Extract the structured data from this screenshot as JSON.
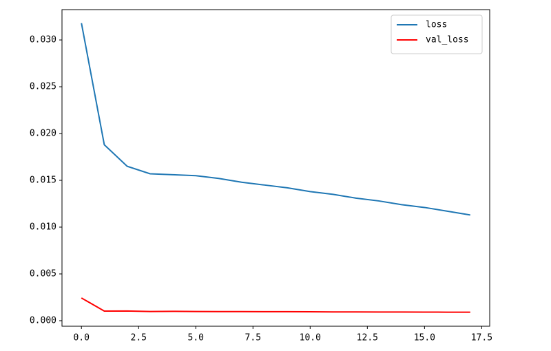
{
  "chart_data": {
    "type": "line",
    "x": [
      0,
      1,
      2,
      3,
      4,
      5,
      6,
      7,
      8,
      9,
      10,
      11,
      12,
      13,
      14,
      15,
      16,
      17
    ],
    "series": [
      {
        "name": "loss",
        "color": "#1f77b4",
        "values": [
          0.0318,
          0.0188,
          0.0165,
          0.0157,
          0.0156,
          0.0155,
          0.0152,
          0.0148,
          0.0145,
          0.0142,
          0.0138,
          0.0135,
          0.0131,
          0.0128,
          0.0124,
          0.0121,
          0.0117,
          0.0113
        ]
      },
      {
        "name": "val_loss",
        "color": "#ff0000",
        "values": [
          0.00243,
          0.00103,
          0.00104,
          0.00098,
          0.001,
          0.00098,
          0.00097,
          0.00097,
          0.00096,
          0.00096,
          0.00095,
          0.00094,
          0.00094,
          0.00093,
          0.00093,
          0.00092,
          0.00091,
          0.00091
        ]
      }
    ],
    "xlim": [
      -0.85,
      17.85
    ],
    "xticks": [
      {
        "value": 0,
        "label": "0.0"
      },
      {
        "value": 2.5,
        "label": "2.5"
      },
      {
        "value": 5,
        "label": "5.0"
      },
      {
        "value": 7.5,
        "label": "7.5"
      },
      {
        "value": 10,
        "label": "10.0"
      },
      {
        "value": 12.5,
        "label": "12.5"
      },
      {
        "value": 15,
        "label": "15.0"
      },
      {
        "value": 17.5,
        "label": "17.5"
      }
    ],
    "ylim": [
      -0.00059,
      0.03324
    ],
    "yticks": [
      {
        "value": 0,
        "label": "0.000"
      },
      {
        "value": 0.005,
        "label": "0.005"
      },
      {
        "value": 0.01,
        "label": "0.010"
      },
      {
        "value": 0.015,
        "label": "0.015"
      },
      {
        "value": 0.02,
        "label": "0.020"
      },
      {
        "value": 0.025,
        "label": "0.025"
      },
      {
        "value": 0.03,
        "label": "0.030"
      }
    ],
    "legend": "upper right"
  }
}
